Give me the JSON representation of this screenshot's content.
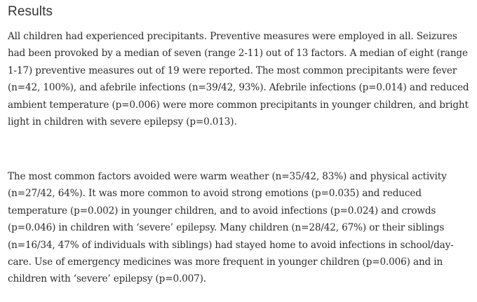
{
  "section": {
    "heading": "Results"
  },
  "paragraphs": [
    "All children had experienced precipitants. Preventive measures were employed in all. Seizures had been provoked by a median of seven (range 2-11) out of 13 factors. A median of eight (range 1-17) preventive measures out of 19 were reported. The most common precipitants were fever (n=42, 100%), and afebrile infections (n=39/42, 93%). Afebrile infections (p=0.014) and reduced ambient temperature (p=0.006) were more common precipitants in younger children, and bright light in children with severe epilepsy (p=0.013).",
    "The most common factors avoided were warm weather (n=35/42, 83%) and physical activity (n=27/42, 64%). It was more common to avoid strong emotions (p=0.035) and reduced temperature (p=0.002) in younger children, and to avoid infections (p=0.024) and crowds (p=0.046) in children with ‘severe’ epilepsy. Many children (n=28/42, 67%) or their siblings (n=16/34, 47% of individuals with siblings) had stayed home to avoid infections in school/day-care. Use of emergency medicines was more frequent in younger children (p=0.006) and in children with ‘severe’ epilepsy (p=0.007)."
  ]
}
